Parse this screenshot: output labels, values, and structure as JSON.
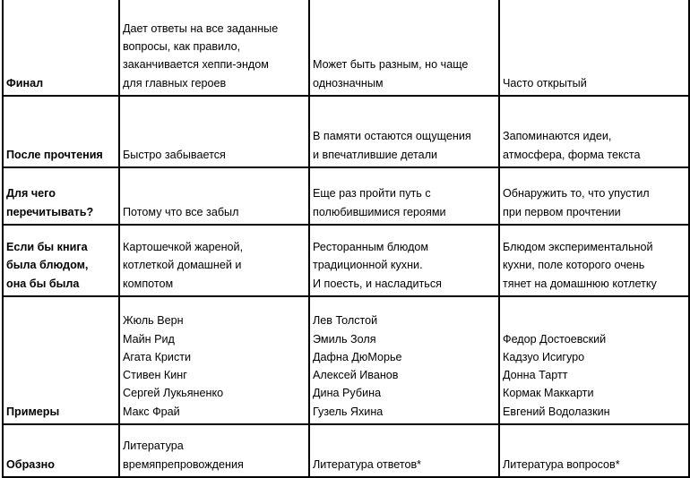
{
  "rows": [
    {
      "label": [
        "Финал"
      ],
      "cells": [
        [
          "Дает ответы на все заданные",
          "вопросы, как правило,",
          "заканчивается хеппи-эндом",
          "для главных героев"
        ],
        [
          "Может быть разным, но чаще",
          "однозначным"
        ],
        [
          "Часто открытый"
        ]
      ]
    },
    {
      "label": [
        "После прочтения"
      ],
      "cells": [
        [
          "Быстро забывается"
        ],
        [
          "В памяти остаются ощущения",
          "и впечатлившие детали"
        ],
        [
          "Запоминаются идеи,",
          "атмосфера, форма текста"
        ]
      ]
    },
    {
      "label": [
        "Для чего",
        "перечитывать?"
      ],
      "cells": [
        [
          "Потому что все забыл"
        ],
        [
          "Еще раз пройти путь с",
          "полюбившимися героями"
        ],
        [
          "Обнаружить то, что упустил",
          "при первом прочтении"
        ]
      ]
    },
    {
      "label": [
        "Если бы книга",
        "была блюдом,",
        "она бы была"
      ],
      "cells": [
        [
          "Картошечкой жареной,",
          "котлеткой домашней и",
          "компотом"
        ],
        [
          "Ресторанным блюдом",
          "традиционной кухни.",
          "И поесть, и насладиться"
        ],
        [
          "Блюдом экспериментальной",
          "кухни, поле которого очень",
          "тянет на домашнюю котлетку"
        ]
      ]
    },
    {
      "label": [
        "Примеры"
      ],
      "cells": [
        [
          "Жюль Верн",
          "Майн Рид",
          "Агата Кристи",
          "Стивен Кинг",
          "Сергей Лукьяненко",
          "Макс Фрай"
        ],
        [
          "Лев Толстой",
          "Эмиль Золя",
          "Дафна ДюМорье",
          "Алексей Иванов",
          "Дина Рубина",
          "Гузель Яхина"
        ],
        [
          "Федор Достоевский",
          "Кадзуо Исигуро",
          "Донна Тартт",
          "Кормак Маккарти",
          "Евгений Водолазкин"
        ]
      ]
    },
    {
      "label": [
        "Образно"
      ],
      "cells": [
        [
          "Литература",
          "времяпрепровождения"
        ],
        [
          "Литература ответов*"
        ],
        [
          "Литература вопросов*"
        ]
      ]
    }
  ]
}
